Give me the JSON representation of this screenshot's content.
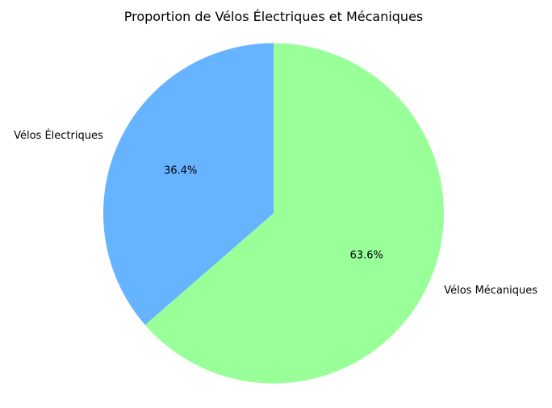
{
  "chart_data": {
    "type": "pie",
    "title": "Proportion de Vélos Électriques et Mécaniques",
    "categories": [
      "Vélos Électriques",
      "Vélos Mécaniques"
    ],
    "values": [
      36.4,
      63.6
    ],
    "value_labels": [
      "36.4%",
      "63.6%"
    ],
    "colors": [
      "#66b3ff",
      "#99ff99"
    ],
    "start_angle_deg": 90,
    "direction": "counterclockwise",
    "legend": "none"
  }
}
